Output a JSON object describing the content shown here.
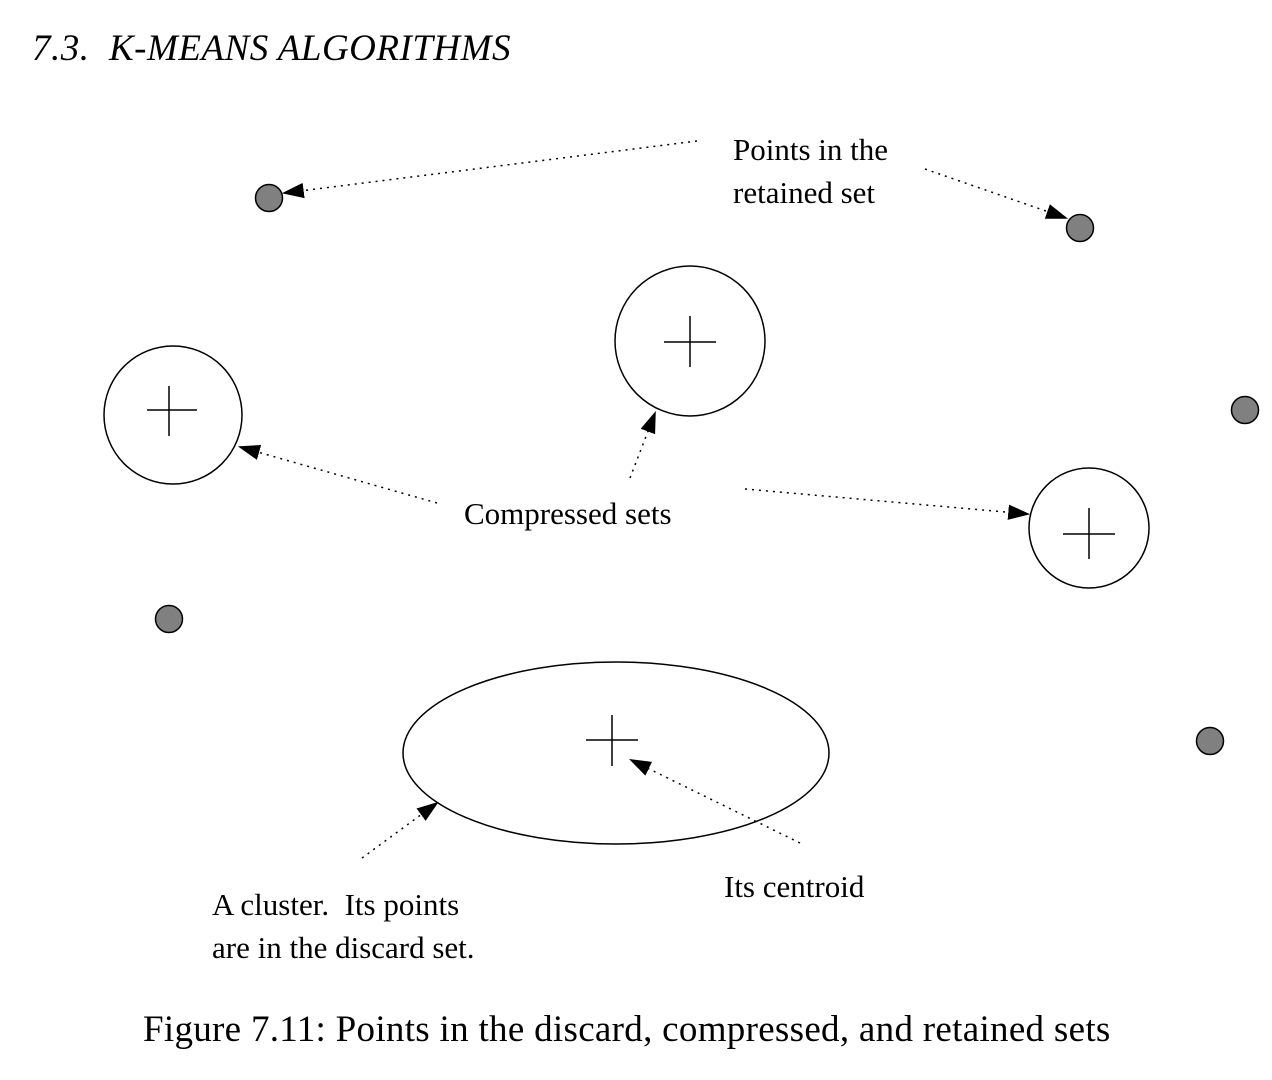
{
  "header": {
    "running_head": "7.3.  K-MEANS ALGORITHMS"
  },
  "figure": {
    "labels": {
      "retained_line1": "Points in the",
      "retained_line2": "retained set",
      "compressed": "Compressed sets",
      "centroid": "Its centroid",
      "cluster_line1": "A cluster.  Its points",
      "cluster_line2": "are in the discard set."
    },
    "colors": {
      "retained_point_fill": "#808080",
      "stroke": "#000000"
    }
  },
  "caption": {
    "text": "Figure 7.11: Points in the discard, compressed, and retained sets"
  }
}
